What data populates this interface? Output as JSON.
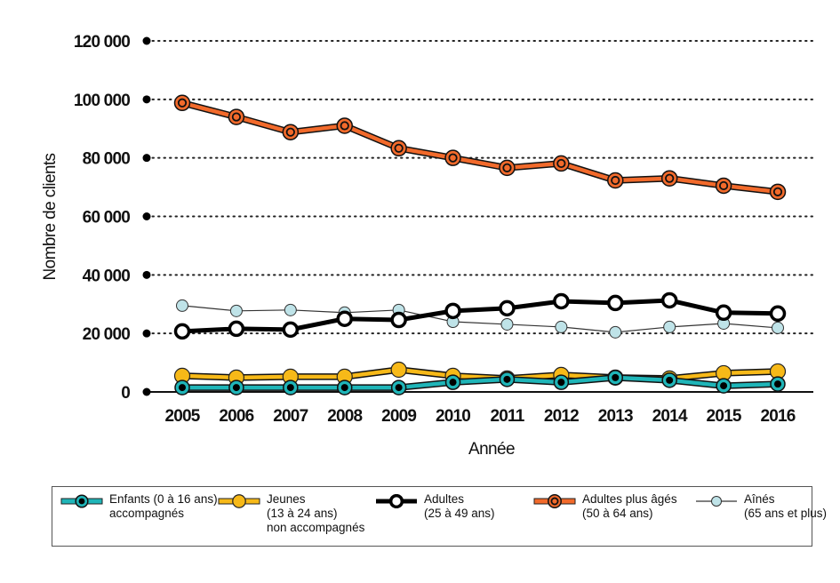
{
  "chart_data": {
    "type": "line",
    "title": "",
    "xlabel": "Année",
    "ylabel": "Nombre de clients",
    "ylim": [
      0,
      120000
    ],
    "yticks": [
      0,
      20000,
      40000,
      60000,
      80000,
      100000,
      120000
    ],
    "ytick_labels": [
      "0",
      "20 000",
      "40 000",
      "60 000",
      "80 000",
      "100 000",
      "120 000"
    ],
    "grid": "horizontal dotted",
    "legend_position": "bottom",
    "x": [
      "2005",
      "2006",
      "2007",
      "2008",
      "2009",
      "2010",
      "2011",
      "2012",
      "2013",
      "2014",
      "2015",
      "2016"
    ],
    "series": [
      {
        "id": "enfants",
        "name": "Enfants (0 à 16 ans) accompagnés",
        "legend_lines": [
          "Enfants (0 à 16 ans)",
          "accompagnés"
        ],
        "color": "#1fb5b8",
        "marker": "ring-dot",
        "values": [
          1500,
          1500,
          1500,
          1500,
          1500,
          3300,
          4300,
          3300,
          4900,
          4000,
          2100,
          2700
        ]
      },
      {
        "id": "jeunes",
        "name": "Jeunes (13 à 24 ans) non accompagnés",
        "legend_lines": [
          "Jeunes",
          "(13 à 24 ans)",
          "non accompagnés"
        ],
        "color": "#f7b918",
        "marker": "filled",
        "values": [
          5500,
          4900,
          5200,
          5200,
          7600,
          5500,
          4600,
          5800,
          4900,
          4600,
          6400,
          7000
        ]
      },
      {
        "id": "adultes",
        "name": "Adultes (25 à 49 ans)",
        "legend_lines": [
          "Adultes",
          "(25 à 49 ans)"
        ],
        "color": "#000000",
        "marker": "hollow",
        "values": [
          20700,
          21600,
          21300,
          25000,
          24600,
          27700,
          28600,
          31000,
          30400,
          31300,
          27100,
          26800
        ]
      },
      {
        "id": "adultes_ages",
        "name": "Adultes plus âgés (50 à 64 ans)",
        "legend_lines": [
          "Adultes plus âgés",
          "(50 à 64 ans)"
        ],
        "color": "#f26a2b",
        "marker": "ring",
        "values": [
          98800,
          94000,
          88800,
          91000,
          83300,
          80000,
          76600,
          78100,
          72300,
          73000,
          70500,
          68400
        ]
      },
      {
        "id": "aines",
        "name": "Aînés (65 ans et plus)",
        "legend_lines": [
          "Aînés",
          "(65 ans et plus)"
        ],
        "color": "#bfe3e8",
        "marker": "light",
        "values": [
          29500,
          27700,
          28000,
          27100,
          28000,
          24000,
          23100,
          22200,
          20400,
          22200,
          23400,
          21900
        ]
      }
    ]
  }
}
